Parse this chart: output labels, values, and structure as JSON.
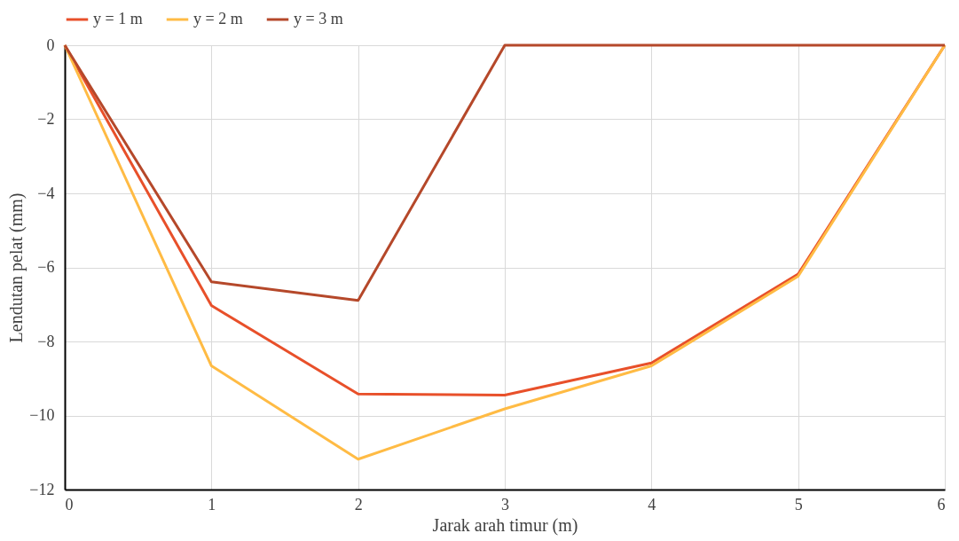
{
  "chart_data": {
    "type": "line",
    "xlabel": "Jarak arah timur (m)",
    "ylabel": "Lendutan pelat (mm)",
    "x": [
      0,
      1,
      2,
      3,
      4,
      5,
      6
    ],
    "xlim": [
      0,
      6
    ],
    "xticks": [
      0,
      1,
      2,
      3,
      4,
      5,
      6
    ],
    "ylim": [
      -12,
      0
    ],
    "yticks": [
      -12,
      -10,
      -8,
      -6,
      -4,
      -2,
      0
    ],
    "grid": true,
    "legend": "top",
    "marker": "none",
    "line_style": "solid",
    "series": [
      {
        "name": "y = 1 m",
        "color": "#e8502a",
        "values": [
          0,
          -7.03,
          -9.42,
          -9.45,
          -8.58,
          -6.18,
          0
        ]
      },
      {
        "name": "y = 2 m",
        "color": "#ffbb44",
        "values": [
          0,
          -8.66,
          -11.18,
          -9.82,
          -8.66,
          -6.24,
          0
        ]
      },
      {
        "name": "y = 3 m",
        "color": "#b5482a",
        "values": [
          0,
          -6.39,
          -6.89,
          0,
          0,
          0,
          0
        ]
      }
    ]
  }
}
